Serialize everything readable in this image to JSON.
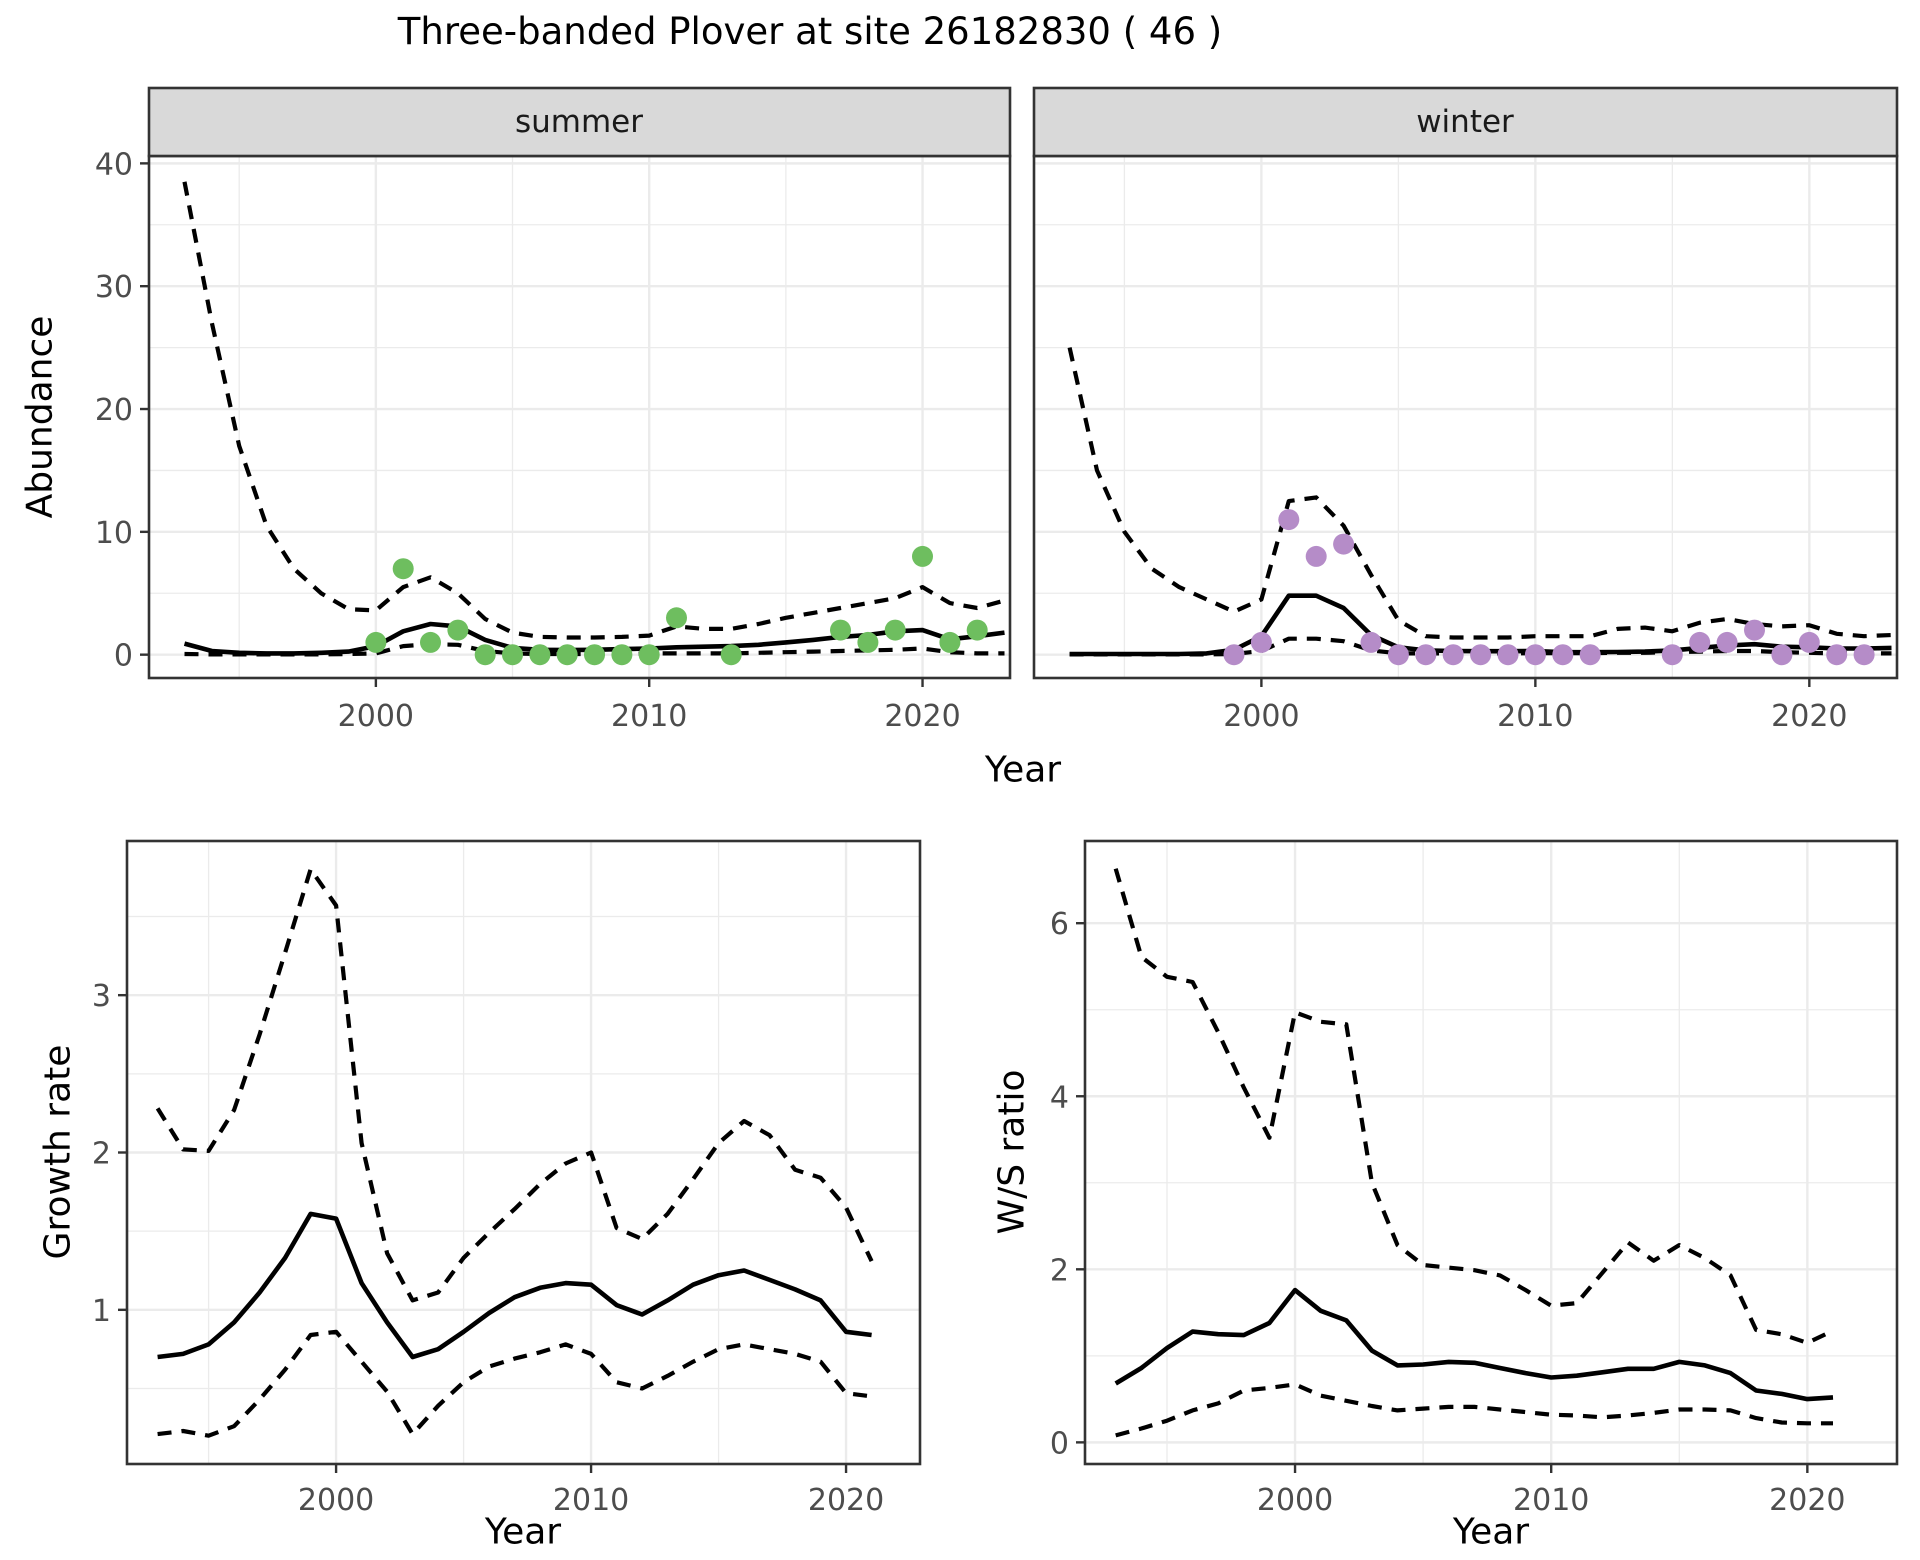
{
  "title": "Three-banded Plover at site 26182830 ( 46 )",
  "colors": {
    "summer_points": "#6EBE5F",
    "winter_points": "#B58CC8",
    "line": "#000000",
    "strip_bg": "#D9D9D9",
    "panel_border": "#333333",
    "grid": "#EBEBEB",
    "tick_label": "#4D4D4D"
  },
  "chart_data": [
    {
      "id": "abundance",
      "type": "line",
      "xlabel": "Year",
      "ylabel": "Abundance",
      "facets": [
        "summer",
        "winter"
      ],
      "x_ticks": [
        2000,
        2010,
        2020
      ],
      "x_minor": [
        1995,
        2005,
        2015
      ],
      "y_ticks": [
        0,
        10,
        20,
        30,
        40
      ],
      "y_minor": [
        5,
        15,
        25,
        35
      ],
      "xlim": [
        1991.7,
        2023.2
      ],
      "ylim": [
        -1.9,
        40.6
      ],
      "years": [
        1993,
        1994,
        1995,
        1996,
        1997,
        1998,
        1999,
        2000,
        2001,
        2002,
        2003,
        2004,
        2005,
        2006,
        2007,
        2008,
        2009,
        2010,
        2011,
        2012,
        2013,
        2014,
        2015,
        2016,
        2017,
        2018,
        2019,
        2020,
        2021,
        2022,
        2023
      ],
      "series": [
        {
          "facet": "summer",
          "name": "fit",
          "style": "solid",
          "values": [
            0.9,
            0.3,
            0.15,
            0.1,
            0.1,
            0.15,
            0.25,
            0.7,
            1.9,
            2.5,
            2.3,
            1.2,
            0.55,
            0.4,
            0.38,
            0.4,
            0.45,
            0.5,
            0.6,
            0.65,
            0.7,
            0.8,
            1.0,
            1.2,
            1.45,
            1.6,
            1.9,
            2.0,
            1.25,
            1.5,
            1.8
          ]
        },
        {
          "facet": "summer",
          "name": "ci_upper",
          "style": "dashed",
          "values": [
            38.5,
            27,
            17,
            10.5,
            7,
            5,
            3.7,
            3.6,
            5.5,
            6.3,
            5.0,
            2.9,
            1.8,
            1.45,
            1.4,
            1.4,
            1.45,
            1.55,
            2.3,
            2.1,
            2.1,
            2.5,
            3.0,
            3.4,
            3.8,
            4.2,
            4.6,
            5.5,
            4.2,
            3.8,
            4.4
          ]
        },
        {
          "facet": "summer",
          "name": "ci_lower",
          "style": "dashed",
          "values": [
            0.05,
            0.02,
            0.02,
            0.02,
            0.02,
            0.02,
            0.05,
            0.1,
            0.7,
            0.85,
            0.8,
            0.3,
            0.1,
            0.05,
            0.05,
            0.05,
            0.05,
            0.1,
            0.1,
            0.1,
            0.1,
            0.15,
            0.2,
            0.25,
            0.3,
            0.35,
            0.4,
            0.5,
            0.2,
            0.1,
            0.1
          ]
        },
        {
          "facet": "winter",
          "name": "fit",
          "style": "solid",
          "values": [
            0.05,
            0.05,
            0.05,
            0.05,
            0.05,
            0.1,
            0.4,
            1.5,
            4.8,
            4.8,
            3.8,
            1.6,
            0.6,
            0.35,
            0.3,
            0.28,
            0.28,
            0.3,
            0.2,
            0.2,
            0.22,
            0.25,
            0.35,
            0.55,
            0.75,
            0.85,
            0.65,
            0.6,
            0.5,
            0.5,
            0.55
          ]
        },
        {
          "facet": "winter",
          "name": "ci_upper",
          "style": "dashed",
          "values": [
            25,
            15,
            10,
            7,
            5.5,
            4.5,
            3.5,
            4.5,
            12.5,
            12.8,
            10.5,
            6.5,
            2.8,
            1.5,
            1.4,
            1.4,
            1.4,
            1.5,
            1.5,
            1.5,
            2.1,
            2.2,
            1.9,
            2.6,
            2.9,
            2.5,
            2.3,
            2.4,
            1.7,
            1.5,
            1.6
          ]
        },
        {
          "facet": "winter",
          "name": "ci_lower",
          "style": "dashed",
          "values": [
            0.02,
            0.02,
            0.02,
            0.02,
            0.02,
            0.02,
            0.05,
            0.3,
            1.3,
            1.3,
            1.1,
            0.35,
            0.1,
            0.1,
            0.1,
            0.1,
            0.1,
            0.12,
            0.12,
            0.12,
            0.15,
            0.15,
            0.2,
            0.25,
            0.3,
            0.3,
            0.2,
            0.15,
            0.1,
            0.1,
            0.1
          ]
        }
      ],
      "points": [
        {
          "facet": "summer",
          "color_key": "summer_points",
          "years": [
            2000,
            2001,
            2002,
            2003,
            2004,
            2005,
            2006,
            2007,
            2008,
            2009,
            2010,
            2011,
            2013,
            2017,
            2018,
            2019,
            2020,
            2021,
            2022
          ],
          "values": [
            1,
            7,
            1,
            2,
            0,
            0,
            0,
            0,
            0,
            0,
            0,
            3,
            0,
            2,
            1,
            2,
            8,
            1,
            2
          ]
        },
        {
          "facet": "winter",
          "color_key": "winter_points",
          "years": [
            1999,
            2000,
            2001,
            2002,
            2003,
            2004,
            2005,
            2006,
            2007,
            2008,
            2009,
            2010,
            2011,
            2012,
            2015,
            2016,
            2017,
            2018,
            2019,
            2020,
            2021,
            2022
          ],
          "values": [
            0,
            1,
            11,
            8,
            9,
            1,
            0,
            0,
            0,
            0,
            0,
            0,
            0,
            0,
            0,
            1,
            1,
            2,
            0,
            1,
            0,
            0
          ]
        }
      ]
    },
    {
      "id": "growth_rate",
      "type": "line",
      "xlabel": "Year",
      "ylabel": "Growth rate",
      "x_ticks": [
        2000,
        2010,
        2020
      ],
      "x_minor": [
        1995,
        2005,
        2015
      ],
      "y_ticks": [
        1,
        2,
        3
      ],
      "y_minor": [
        0.5,
        1.5,
        2.5,
        3.5
      ],
      "xlim": [
        1991.8,
        2022.9
      ],
      "ylim": [
        0.02,
        3.98
      ],
      "years": [
        1993,
        1994,
        1995,
        1996,
        1997,
        1998,
        1999,
        2000,
        2001,
        2002,
        2003,
        2004,
        2005,
        2006,
        2007,
        2008,
        2009,
        2010,
        2011,
        2012,
        2013,
        2014,
        2015,
        2016,
        2017,
        2018,
        2019,
        2020,
        2021
      ],
      "series": [
        {
          "name": "fit",
          "style": "solid",
          "values": [
            0.7,
            0.72,
            0.78,
            0.92,
            1.11,
            1.33,
            1.61,
            1.58,
            1.17,
            0.92,
            0.7,
            0.75,
            0.86,
            0.98,
            1.08,
            1.14,
            1.17,
            1.16,
            1.03,
            0.97,
            1.06,
            1.16,
            1.22,
            1.25,
            1.19,
            1.13,
            1.06,
            0.86,
            0.84
          ]
        },
        {
          "name": "ci_upper",
          "style": "dashed",
          "values": [
            2.28,
            2.02,
            2.01,
            2.27,
            2.75,
            3.27,
            3.8,
            3.57,
            2.06,
            1.36,
            1.06,
            1.11,
            1.33,
            1.49,
            1.64,
            1.8,
            1.93,
            2.0,
            1.52,
            1.45,
            1.61,
            1.83,
            2.06,
            2.2,
            2.11,
            1.89,
            1.84,
            1.65,
            1.31
          ]
        },
        {
          "name": "ci_lower",
          "style": "dashed",
          "values": [
            0.21,
            0.23,
            0.2,
            0.26,
            0.43,
            0.62,
            0.84,
            0.86,
            0.67,
            0.48,
            0.21,
            0.39,
            0.54,
            0.64,
            0.69,
            0.73,
            0.78,
            0.72,
            0.54,
            0.5,
            0.58,
            0.67,
            0.75,
            0.78,
            0.75,
            0.72,
            0.67,
            0.47,
            0.45
          ]
        }
      ]
    },
    {
      "id": "ws_ratio",
      "type": "line",
      "xlabel": "Year",
      "ylabel": "W/S ratio",
      "x_ticks": [
        2000,
        2010,
        2020
      ],
      "x_minor": [
        1995,
        2005,
        2015
      ],
      "y_ticks": [
        0,
        2,
        4,
        6
      ],
      "y_minor": [
        1,
        3,
        5
      ],
      "xlim": [
        1991.8,
        2023.5
      ],
      "ylim": [
        -0.25,
        6.95
      ],
      "years": [
        1993,
        1994,
        1995,
        1996,
        1997,
        1998,
        1999,
        2000,
        2001,
        2002,
        2003,
        2004,
        2005,
        2006,
        2007,
        2008,
        2009,
        2010,
        2011,
        2012,
        2013,
        2014,
        2015,
        2016,
        2017,
        2018,
        2019,
        2020,
        2021
      ],
      "series": [
        {
          "name": "fit",
          "style": "solid",
          "values": [
            0.68,
            0.86,
            1.09,
            1.28,
            1.25,
            1.24,
            1.38,
            1.76,
            1.52,
            1.41,
            1.06,
            0.89,
            0.9,
            0.93,
            0.92,
            0.86,
            0.8,
            0.75,
            0.77,
            0.81,
            0.85,
            0.85,
            0.93,
            0.89,
            0.8,
            0.6,
            0.56,
            0.5,
            0.52
          ]
        },
        {
          "name": "ci_upper",
          "style": "dashed",
          "values": [
            6.63,
            5.61,
            5.38,
            5.32,
            4.74,
            4.1,
            3.52,
            4.97,
            4.86,
            4.83,
            3.0,
            2.28,
            2.05,
            2.02,
            1.99,
            1.93,
            1.76,
            1.58,
            1.61,
            1.96,
            2.31,
            2.1,
            2.28,
            2.13,
            1.93,
            1.3,
            1.25,
            1.15,
            1.29
          ]
        },
        {
          "name": "ci_lower",
          "style": "dashed",
          "values": [
            0.08,
            0.16,
            0.25,
            0.37,
            0.45,
            0.6,
            0.63,
            0.67,
            0.54,
            0.48,
            0.42,
            0.37,
            0.39,
            0.41,
            0.41,
            0.38,
            0.35,
            0.32,
            0.31,
            0.29,
            0.31,
            0.34,
            0.38,
            0.38,
            0.37,
            0.28,
            0.23,
            0.22,
            0.22
          ]
        }
      ]
    }
  ]
}
